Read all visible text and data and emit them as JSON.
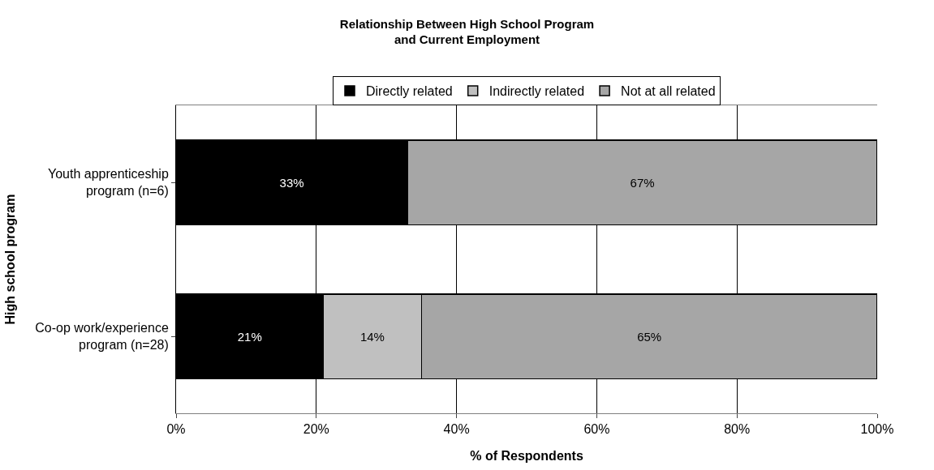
{
  "chart_data": {
    "type": "bar",
    "orientation": "horizontal",
    "stacked": true,
    "title": "Relationship Between High School Program\nand Current Employment",
    "xlabel": "% of Respondents",
    "ylabel": "High school program",
    "categories": [
      "Youth apprenticeship program (n=6)",
      "Co-op work/experience program (n=28)"
    ],
    "series": [
      {
        "name": "Directly related",
        "color": "#000000",
        "values": [
          33,
          21
        ],
        "value_labels": [
          "33%",
          "21%"
        ]
      },
      {
        "name": "Indirectly related",
        "color": "#c0c0c0",
        "values": [
          null,
          14
        ],
        "value_labels": [
          null,
          "14%"
        ]
      },
      {
        "name": "Not at all related",
        "color": "#a6a6a6",
        "values": [
          67,
          65
        ],
        "value_labels": [
          "67%",
          "65%"
        ]
      }
    ],
    "xlim": [
      0,
      100
    ],
    "xticks": [
      {
        "value": 0,
        "label": "0%"
      },
      {
        "value": 20,
        "label": "20%"
      },
      {
        "value": 40,
        "label": "40%"
      },
      {
        "value": 60,
        "label": "60%"
      },
      {
        "value": 80,
        "label": "80%"
      },
      {
        "value": 100,
        "label": "100%"
      }
    ],
    "grid": "x",
    "legend": "top"
  }
}
